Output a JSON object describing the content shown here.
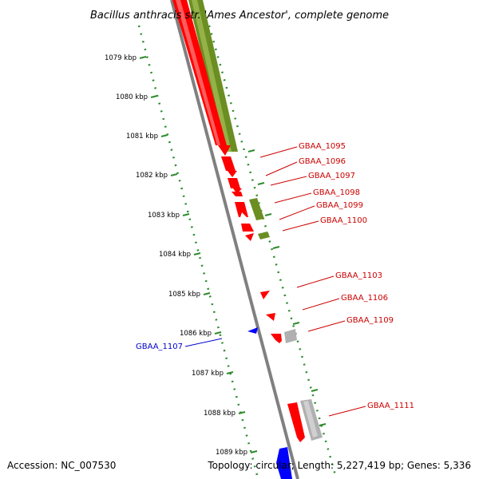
{
  "title": "Bacillus anthracis str. 'Ames Ancestor', complete genome",
  "footer": {
    "accession": "Accession: NC_007530",
    "summary": "Topology: circular; Length: 5,227,419 bp; Genes: 5,336"
  },
  "ruler_ticks": [
    "1079 kbp",
    "1080 kbp",
    "1081 kbp",
    "1082 kbp",
    "1083 kbp",
    "1084 kbp",
    "1085 kbp",
    "1086 kbp",
    "1087 kbp",
    "1088 kbp",
    "1089 kbp"
  ],
  "colors": {
    "forward_cds": "#ff0000",
    "reverse_cds": "#0000ff",
    "rna": "#6b8e23",
    "other": "#b0b0b0",
    "backbone": "#808080",
    "ruler": "#2e8b2e",
    "label_forward": "#cc0000",
    "label_reverse": "#0000cc"
  },
  "gene_labels": [
    {
      "text": "GBAA_1095",
      "strand": "forward"
    },
    {
      "text": "GBAA_1096",
      "strand": "forward"
    },
    {
      "text": "GBAA_1097",
      "strand": "forward"
    },
    {
      "text": "GBAA_1098",
      "strand": "forward"
    },
    {
      "text": "GBAA_1099",
      "strand": "forward"
    },
    {
      "text": "GBAA_1100",
      "strand": "forward"
    },
    {
      "text": "GBAA_1103",
      "strand": "forward"
    },
    {
      "text": "GBAA_1106",
      "strand": "forward"
    },
    {
      "text": "GBAA_1109",
      "strand": "forward"
    },
    {
      "text": "GBAA_1107",
      "strand": "reverse"
    },
    {
      "text": "GBAA_1111",
      "strand": "forward"
    }
  ]
}
